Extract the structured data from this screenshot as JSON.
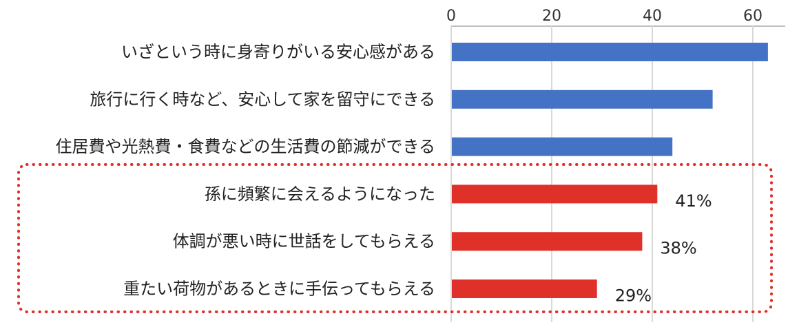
{
  "chart_data": {
    "type": "bar",
    "orientation": "horizontal",
    "xlim": [
      0,
      65
    ],
    "x_ticks": [
      0,
      20,
      40,
      60
    ],
    "grid": true,
    "categories": [
      "いざという時に身寄りがいる安心感がある",
      "旅行に行く時など、安心して家を留守にできる",
      "住居費や光熱費・食費などの生活費の節減ができる",
      "孫に頻繁に会えるようになった",
      "体調が悪い時に世話をしてもらえる",
      "重たい荷物があるときに手伝ってもらえる"
    ],
    "values": [
      63,
      52,
      44,
      41,
      38,
      29
    ],
    "value_labels": [
      "",
      "",
      "",
      "41%",
      "38%",
      "29%"
    ],
    "bar_colors": [
      "#4472c4",
      "#4472c4",
      "#4472c4",
      "#e0302a",
      "#e0302a",
      "#e0302a"
    ],
    "highlighted_categories": [
      3,
      4,
      5
    ],
    "highlight_color": "#e0302a"
  }
}
